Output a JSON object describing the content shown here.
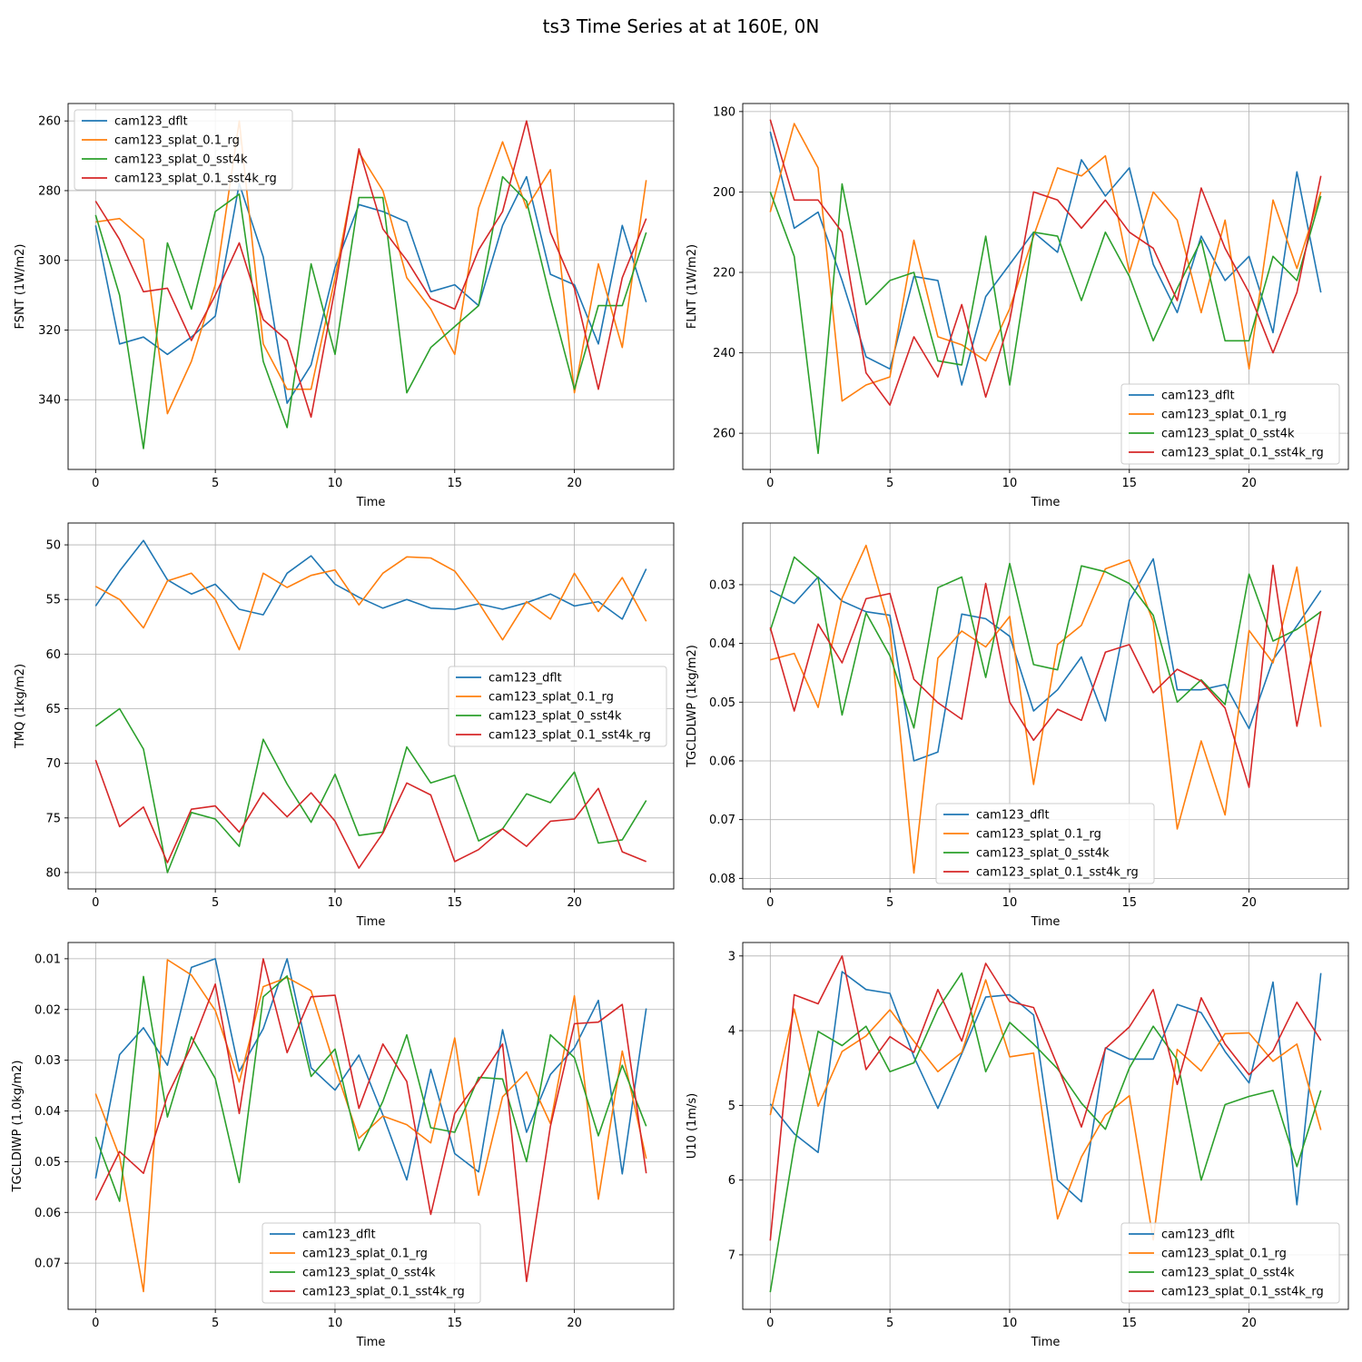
{
  "figure": {
    "title": "ts3 Time Series at at 160E, 0N"
  },
  "colors": {
    "cam123_dflt": "#1f77b4",
    "cam123_splat_0.1_rg": "#ff7f0e",
    "cam123_splat_0_sst4k": "#2ca02c",
    "cam123_splat_0.1_sst4k_rg": "#d62728"
  },
  "chart_data": [
    {
      "type": "line",
      "title": "",
      "xlabel": "Time",
      "ylabel": "FSNT (1W/m2)",
      "inverted_y": true,
      "xlim": [
        -1.15,
        24.15
      ],
      "ylim": [
        360,
        255
      ],
      "xticks": [
        0,
        5,
        10,
        15,
        20
      ],
      "yticks": [
        260,
        280,
        300,
        320,
        340
      ],
      "grid": true,
      "legend": "upper-left",
      "x": [
        0,
        1,
        2,
        3,
        4,
        5,
        6,
        7,
        8,
        9,
        10,
        11,
        12,
        13,
        14,
        15,
        16,
        17,
        18,
        19,
        20,
        21,
        22,
        23
      ],
      "series": [
        {
          "name": "cam123_dflt",
          "values": [
            290,
            324,
            322,
            327,
            322,
            316,
            278,
            299,
            341,
            330,
            302,
            284,
            286,
            289,
            309,
            307,
            313,
            290,
            276,
            304,
            307,
            324,
            290,
            312
          ]
        },
        {
          "name": "cam123_splat_0.1_rg",
          "values": [
            289,
            288,
            294,
            344,
            329,
            307,
            260,
            324,
            337,
            337,
            305,
            269,
            280,
            305,
            314,
            327,
            285,
            266,
            285,
            274,
            338,
            301,
            325,
            277
          ]
        },
        {
          "name": "cam123_splat_0_sst4k",
          "values": [
            287,
            310,
            354,
            295,
            314,
            286,
            281,
            329,
            348,
            301,
            327,
            282,
            282,
            338,
            325,
            319,
            313,
            276,
            283,
            311,
            337,
            313,
            313,
            292
          ]
        },
        {
          "name": "cam123_splat_0.1_sst4k_rg",
          "values": [
            283,
            294,
            309,
            308,
            323,
            310,
            295,
            317,
            323,
            345,
            308,
            268,
            291,
            300,
            311,
            314,
            297,
            286,
            260,
            292,
            308,
            337,
            305,
            288
          ]
        }
      ]
    },
    {
      "type": "line",
      "title": "",
      "xlabel": "Time",
      "ylabel": "FLNT (1W/m2)",
      "inverted_y": true,
      "xlim": [
        -1.15,
        24.15
      ],
      "ylim": [
        269,
        178
      ],
      "xticks": [
        0,
        5,
        10,
        15,
        20
      ],
      "yticks": [
        180,
        200,
        220,
        240,
        260
      ],
      "grid": true,
      "legend": "lower-right",
      "x": [
        0,
        1,
        2,
        3,
        4,
        5,
        6,
        7,
        8,
        9,
        10,
        11,
        12,
        13,
        14,
        15,
        16,
        17,
        18,
        19,
        20,
        21,
        22,
        23
      ],
      "series": [
        {
          "name": "cam123_dflt",
          "values": [
            185,
            209,
            205,
            222,
            241,
            244,
            221,
            222,
            248,
            226,
            218,
            210,
            215,
            192,
            201,
            194,
            218,
            230,
            211,
            222,
            216,
            235,
            195,
            225
          ]
        },
        {
          "name": "cam123_splat_0.1_rg",
          "values": [
            205,
            183,
            194,
            252,
            248,
            246,
            212,
            236,
            238,
            242,
            229,
            211,
            194,
            196,
            191,
            220,
            200,
            207,
            230,
            207,
            244,
            202,
            219,
            200
          ]
        },
        {
          "name": "cam123_splat_0_sst4k",
          "values": [
            200,
            216,
            265,
            198,
            228,
            222,
            220,
            242,
            243,
            211,
            248,
            210,
            211,
            227,
            210,
            221,
            237,
            224,
            212,
            237,
            237,
            216,
            222,
            201
          ]
        },
        {
          "name": "cam123_splat_0.1_sst4k_rg",
          "values": [
            182,
            202,
            202,
            210,
            245,
            253,
            236,
            246,
            228,
            251,
            232,
            200,
            202,
            209,
            202,
            210,
            214,
            227,
            199,
            214,
            225,
            240,
            225,
            196
          ]
        }
      ]
    },
    {
      "type": "line",
      "title": "",
      "xlabel": "Time",
      "ylabel": "TMQ (1kg/m2)",
      "inverted_y": true,
      "xlim": [
        -1.15,
        24.15
      ],
      "ylim": [
        81.5,
        48
      ],
      "xticks": [
        0,
        5,
        10,
        15,
        20
      ],
      "yticks": [
        50,
        55,
        60,
        65,
        70,
        75,
        80
      ],
      "grid": true,
      "legend": "center-right",
      "x": [
        0,
        1,
        2,
        3,
        4,
        5,
        6,
        7,
        8,
        9,
        10,
        11,
        12,
        13,
        14,
        15,
        16,
        17,
        18,
        19,
        20,
        21,
        22,
        23
      ],
      "series": [
        {
          "name": "cam123_dflt",
          "values": [
            55.6,
            52.4,
            49.6,
            53.2,
            54.5,
            53.6,
            55.9,
            56.4,
            52.6,
            51.0,
            53.6,
            54.8,
            55.8,
            55.0,
            55.8,
            55.9,
            55.4,
            55.9,
            55.3,
            54.5,
            55.6,
            55.2,
            56.8,
            52.2
          ]
        },
        {
          "name": "cam123_splat_0.1_rg",
          "values": [
            53.8,
            55.0,
            57.6,
            53.3,
            52.6,
            55.0,
            59.6,
            52.6,
            53.9,
            52.8,
            52.3,
            55.5,
            52.6,
            51.1,
            51.2,
            52.4,
            55.3,
            58.7,
            55.2,
            56.8,
            52.6,
            56.1,
            53.0,
            57.0
          ]
        },
        {
          "name": "cam123_splat_0_sst4k",
          "values": [
            66.6,
            65.0,
            68.7,
            80.0,
            74.5,
            75.1,
            77.6,
            67.8,
            71.9,
            75.4,
            71.0,
            76.6,
            76.3,
            68.5,
            71.8,
            71.1,
            77.1,
            76.0,
            72.8,
            73.6,
            70.8,
            77.3,
            77.0,
            73.4
          ]
        },
        {
          "name": "cam123_splat_0.1_sst4k_rg",
          "values": [
            69.7,
            75.8,
            74.0,
            79.1,
            74.2,
            73.9,
            76.3,
            72.7,
            74.9,
            72.7,
            75.3,
            79.6,
            76.4,
            71.8,
            72.9,
            79.0,
            77.9,
            76.0,
            77.6,
            75.3,
            75.1,
            72.3,
            78.1,
            79.0
          ]
        }
      ]
    },
    {
      "type": "line",
      "title": "",
      "xlabel": "Time",
      "ylabel": "TGCLDLWP (1kg/m2)",
      "inverted_y": true,
      "xlim": [
        -1.15,
        24.15
      ],
      "ylim": [
        0.0818,
        0.0195
      ],
      "xticks": [
        0,
        5,
        10,
        15,
        20
      ],
      "yticks": [
        0.03,
        0.04,
        0.05,
        0.06,
        0.07,
        0.08
      ],
      "grid": true,
      "legend": "lower-center",
      "x": [
        0,
        1,
        2,
        3,
        4,
        5,
        6,
        7,
        8,
        9,
        10,
        11,
        12,
        13,
        14,
        15,
        16,
        17,
        18,
        19,
        20,
        21,
        22,
        23
      ],
      "series": [
        {
          "name": "cam123_dflt",
          "values": [
            0.031,
            0.0332,
            0.0287,
            0.0328,
            0.0346,
            0.0352,
            0.06,
            0.0585,
            0.035,
            0.0358,
            0.0388,
            0.0515,
            0.0479,
            0.0423,
            0.0532,
            0.0327,
            0.0256,
            0.0479,
            0.0479,
            0.047,
            0.0545,
            0.0428,
            0.037,
            0.031
          ]
        },
        {
          "name": "cam123_splat_0.1_rg",
          "values": [
            0.0428,
            0.0417,
            0.0509,
            0.0323,
            0.0233,
            0.0375,
            0.0791,
            0.0425,
            0.0379,
            0.0406,
            0.0354,
            0.064,
            0.0402,
            0.0369,
            0.0273,
            0.0258,
            0.0363,
            0.0716,
            0.0566,
            0.0692,
            0.0378,
            0.0433,
            0.027,
            0.0542
          ]
        },
        {
          "name": "cam123_splat_0_sst4k",
          "values": [
            0.0378,
            0.0253,
            0.0288,
            0.0522,
            0.0348,
            0.0421,
            0.0544,
            0.0305,
            0.0287,
            0.0458,
            0.0264,
            0.0436,
            0.0445,
            0.0268,
            0.0278,
            0.0298,
            0.0352,
            0.05,
            0.0462,
            0.0504,
            0.0282,
            0.0396,
            0.0376,
            0.0346
          ]
        },
        {
          "name": "cam123_splat_0.1_sst4k_rg",
          "values": [
            0.0373,
            0.0515,
            0.0367,
            0.0433,
            0.0324,
            0.0315,
            0.0461,
            0.0501,
            0.0529,
            0.0298,
            0.05,
            0.0565,
            0.0512,
            0.0531,
            0.0415,
            0.0402,
            0.0484,
            0.0444,
            0.0464,
            0.051,
            0.0645,
            0.0267,
            0.0541,
            0.0345
          ]
        }
      ]
    },
    {
      "type": "line",
      "title": "",
      "xlabel": "Time",
      "ylabel": "TGCLDIWP (1.0kg/m2)",
      "inverted_y": true,
      "xlim": [
        -1.15,
        24.15
      ],
      "ylim": [
        0.0791,
        0.0068
      ],
      "xticks": [
        0,
        5,
        10,
        15,
        20
      ],
      "yticks": [
        0.01,
        0.02,
        0.03,
        0.04,
        0.05,
        0.06,
        0.07
      ],
      "grid": true,
      "legend": "lower-center",
      "x": [
        0,
        1,
        2,
        3,
        4,
        5,
        6,
        7,
        8,
        9,
        10,
        11,
        12,
        13,
        14,
        15,
        16,
        17,
        18,
        19,
        20,
        21,
        22,
        23
      ],
      "series": [
        {
          "name": "cam123_dflt",
          "values": [
            0.0533,
            0.0289,
            0.0236,
            0.031,
            0.0117,
            0.01,
            0.0322,
            0.0238,
            0.01,
            0.0315,
            0.0359,
            0.029,
            0.0408,
            0.0536,
            0.0318,
            0.0484,
            0.052,
            0.024,
            0.0442,
            0.0328,
            0.0276,
            0.0182,
            0.0524,
            0.0198
          ]
        },
        {
          "name": "cam123_splat_0.1_rg",
          "values": [
            0.0366,
            0.049,
            0.0756,
            0.0102,
            0.0132,
            0.0202,
            0.0343,
            0.0155,
            0.0137,
            0.0163,
            0.0314,
            0.0454,
            0.041,
            0.0427,
            0.0463,
            0.0256,
            0.0566,
            0.0372,
            0.0323,
            0.0425,
            0.0173,
            0.0574,
            0.0282,
            0.0494
          ]
        },
        {
          "name": "cam123_splat_0_sst4k",
          "values": [
            0.0451,
            0.0578,
            0.0135,
            0.0412,
            0.0254,
            0.0336,
            0.0541,
            0.0175,
            0.0134,
            0.0332,
            0.0278,
            0.0478,
            0.0381,
            0.025,
            0.0433,
            0.0442,
            0.0334,
            0.0337,
            0.05,
            0.025,
            0.0295,
            0.0449,
            0.031,
            0.043
          ]
        },
        {
          "name": "cam123_splat_0.1_sst4k_rg",
          "values": [
            0.0576,
            0.048,
            0.0523,
            0.037,
            0.0272,
            0.015,
            0.0405,
            0.01,
            0.0285,
            0.0175,
            0.0172,
            0.0395,
            0.0268,
            0.0342,
            0.0604,
            0.0405,
            0.034,
            0.0268,
            0.0736,
            0.043,
            0.0228,
            0.0225,
            0.019,
            0.0523
          ]
        }
      ]
    },
    {
      "type": "line",
      "title": "",
      "xlabel": "Time",
      "ylabel": "U10 (1m/s)",
      "inverted_y": true,
      "xlim": [
        -1.15,
        24.15
      ],
      "ylim": [
        7.73,
        2.82
      ],
      "xticks": [
        0,
        5,
        10,
        15,
        20
      ],
      "yticks": [
        3,
        4,
        5,
        6,
        7
      ],
      "grid": true,
      "legend": "lower-right",
      "x": [
        0,
        1,
        2,
        3,
        4,
        5,
        6,
        7,
        8,
        9,
        10,
        11,
        12,
        13,
        14,
        15,
        16,
        17,
        18,
        19,
        20,
        21,
        22,
        23
      ],
      "series": [
        {
          "name": "cam123_dflt",
          "values": [
            4.98,
            5.38,
            5.63,
            3.21,
            3.45,
            3.5,
            4.35,
            5.04,
            4.31,
            3.55,
            3.52,
            3.79,
            6.0,
            6.29,
            4.23,
            4.38,
            4.38,
            3.65,
            3.76,
            4.28,
            4.7,
            3.35,
            6.33,
            3.23
          ]
        },
        {
          "name": "cam123_splat_0.1_rg",
          "values": [
            5.13,
            3.71,
            5.01,
            4.28,
            4.07,
            3.72,
            4.14,
            4.55,
            4.29,
            3.32,
            4.35,
            4.3,
            6.52,
            5.69,
            5.13,
            4.87,
            6.8,
            4.25,
            4.54,
            4.04,
            4.03,
            4.41,
            4.18,
            5.33
          ]
        },
        {
          "name": "cam123_splat_0_sst4k",
          "values": [
            7.5,
            5.55,
            4.01,
            4.2,
            3.94,
            4.55,
            4.43,
            3.71,
            3.23,
            4.55,
            3.89,
            4.18,
            4.51,
            4.97,
            5.32,
            4.5,
            3.94,
            4.39,
            6.0,
            4.99,
            4.88,
            4.8,
            5.82,
            4.8
          ]
        },
        {
          "name": "cam123_splat_0.1_sst4k_rg",
          "values": [
            6.81,
            3.52,
            3.64,
            3.0,
            4.52,
            4.08,
            4.29,
            3.45,
            4.14,
            3.1,
            3.61,
            3.69,
            4.47,
            5.29,
            4.24,
            3.95,
            3.45,
            4.72,
            3.56,
            4.18,
            4.59,
            4.27,
            3.62,
            4.13
          ]
        }
      ]
    }
  ]
}
